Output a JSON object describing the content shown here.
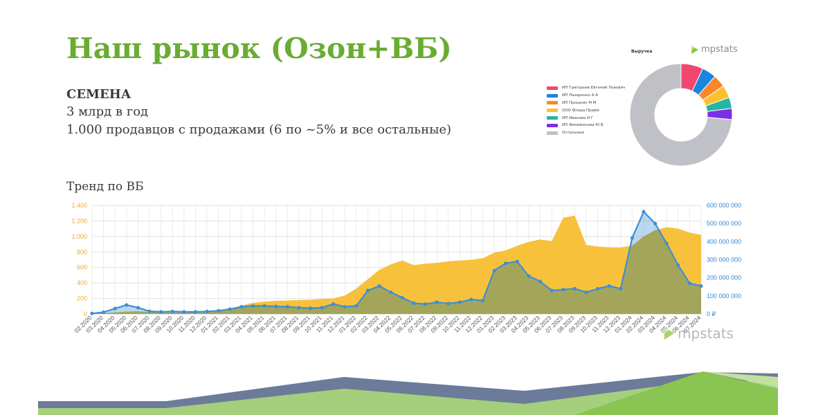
{
  "slide": {
    "title": "Наш рынок (Озон+ВБ)",
    "heading": "СЕМЕНА",
    "lines": [
      "3 млрд в год",
      "1.000 продавцов с продажами (6 по ~5% и все остальные)"
    ],
    "trend_label": "Тренд по ВБ",
    "brand": "mpstats"
  },
  "colors": {
    "title": "#6aac33",
    "area": "#f8c13c",
    "revenue_line": "#3d8fd4",
    "overlap": "#a3a65a",
    "footer_navy": "#6c7b9a",
    "footer_green_light": "#a5cf7c",
    "footer_green": "#8ac452"
  },
  "chart_data": [
    {
      "type": "pie",
      "title": "Выручка",
      "donut": true,
      "legend_position": "left",
      "slices": [
        {
          "label": "ИП Григорьев Евгений Львович",
          "value": 7.0,
          "color": "#ef476f"
        },
        {
          "label": "ИП Лазаренко А А",
          "value": 4.5,
          "color": "#1b84e0"
        },
        {
          "label": "ИП Прошкин М М",
          "value": 4.0,
          "color": "#f7892a"
        },
        {
          "label": "ООО Флора Прайм",
          "value": 4.0,
          "color": "#fbc02d"
        },
        {
          "label": "ИП Иванова И Г",
          "value": 3.5,
          "color": "#26b5a4"
        },
        {
          "label": "ИП Филимонова Ю В",
          "value": 3.5,
          "color": "#7a2fe6"
        },
        {
          "label": "Остальные",
          "value": 73.5,
          "color": "#bfc1c7"
        }
      ]
    },
    {
      "type": "area",
      "grid": true,
      "x": [
        "02.2020",
        "03.2020",
        "04.2020",
        "05.2020",
        "06.2020",
        "07.2020",
        "08.2020",
        "09.2020",
        "10.2020",
        "11.2020",
        "12.2020",
        "01.2021",
        "02.2021",
        "03.2021",
        "04.2021",
        "05.2021",
        "06.2021",
        "07.2021",
        "08.2021",
        "09.2021",
        "10.2021",
        "11.2021",
        "12.2021",
        "01.2022",
        "02.2022",
        "03.2022",
        "04.2022",
        "05.2022",
        "06.2022",
        "07.2022",
        "08.2022",
        "09.2022",
        "10.2022",
        "11.2022",
        "12.2022",
        "01.2023",
        "02.2023",
        "03.2023",
        "04.2023",
        "05.2023",
        "06.2023",
        "07.2023",
        "08.2023",
        "09.2023",
        "10.2023",
        "11.2023",
        "12.2023",
        "01.2024",
        "02.2024",
        "03.2024",
        "04.2024",
        "05.2024",
        "06.2024",
        "07.2024"
      ],
      "y_left": {
        "ylim": [
          0,
          1400
        ],
        "ticks": [
          0,
          200,
          400,
          600,
          800,
          1000,
          1200,
          1400
        ],
        "tick_labels": [
          "0",
          "200",
          "400",
          "600",
          "800",
          "1.000",
          "1.200",
          "1.400"
        ]
      },
      "y_right": {
        "ylim": [
          0,
          600000000
        ],
        "ticks": [
          0,
          100000000,
          200000000,
          300000000,
          400000000,
          500000000,
          600000000
        ],
        "tick_labels": [
          "0 ₽",
          "100 000 000",
          "200 000 000",
          "300 000 000",
          "400 000 000",
          "500 000 000",
          "600 000 000"
        ]
      },
      "series": [
        {
          "axis": "left",
          "kind": "area",
          "values": [
            5,
            10,
            20,
            30,
            35,
            25,
            30,
            30,
            35,
            35,
            40,
            45,
            60,
            110,
            145,
            160,
            170,
            175,
            180,
            185,
            195,
            200,
            240,
            330,
            450,
            570,
            640,
            690,
            630,
            650,
            660,
            680,
            690,
            700,
            720,
            790,
            820,
            880,
            930,
            960,
            940,
            1240,
            1270,
            890,
            870,
            860,
            860,
            880,
            1000,
            1080,
            1120,
            1100,
            1050,
            1020
          ]
        },
        {
          "axis": "right",
          "kind": "line",
          "values": [
            3000000,
            10000000,
            30000000,
            50000000,
            35000000,
            15000000,
            12000000,
            14000000,
            12000000,
            12000000,
            14000000,
            18000000,
            27000000,
            40000000,
            45000000,
            45000000,
            42000000,
            40000000,
            35000000,
            32000000,
            35000000,
            55000000,
            40000000,
            45000000,
            130000000,
            155000000,
            120000000,
            90000000,
            60000000,
            55000000,
            65000000,
            58000000,
            65000000,
            80000000,
            75000000,
            240000000,
            280000000,
            290000000,
            210000000,
            180000000,
            130000000,
            135000000,
            140000000,
            120000000,
            140000000,
            155000000,
            140000000,
            420000000,
            565000000,
            500000000,
            390000000,
            270000000,
            170000000,
            155000000
          ]
        }
      ]
    }
  ]
}
